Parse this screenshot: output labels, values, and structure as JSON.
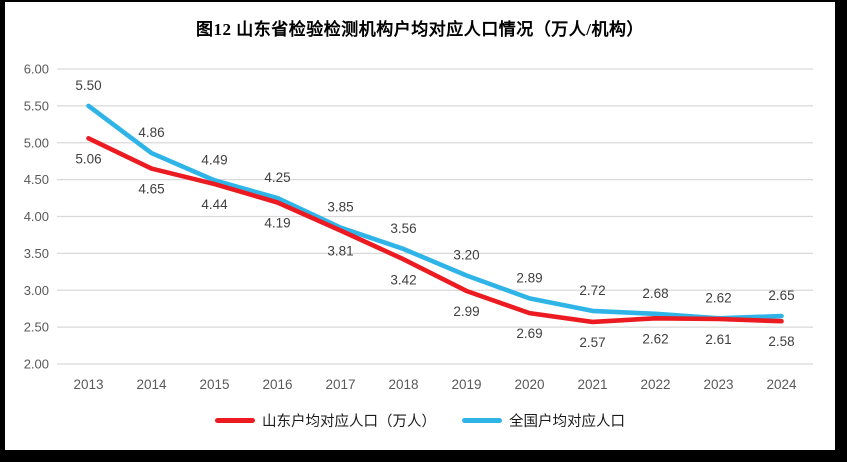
{
  "title": "图12 山东省检验检测机构户均对应人口情况（万人/机构）",
  "chart_data": {
    "type": "line",
    "title": "图12 山东省检验检测机构户均对应人口情况（万人/机构）",
    "categories": [
      "2013",
      "2014",
      "2015",
      "2016",
      "2017",
      "2018",
      "2019",
      "2020",
      "2021",
      "2022",
      "2023",
      "2024"
    ],
    "series": [
      {
        "name": "山东户均对应人口（万人）",
        "color": "#EC1B21",
        "values": [
          5.06,
          4.65,
          4.44,
          4.19,
          3.81,
          3.42,
          2.99,
          2.69,
          2.57,
          2.62,
          2.61,
          2.58
        ],
        "labels": [
          "5.06",
          "4.65",
          "4.44",
          "4.19",
          "3.81",
          "3.42",
          "2.99",
          "2.69",
          "2.57",
          "2.62",
          "2.61",
          "2.58"
        ],
        "label_position": "below"
      },
      {
        "name": "全国户均对应人口",
        "color": "#2FB4E8",
        "values": [
          5.5,
          4.86,
          4.49,
          4.25,
          3.85,
          3.56,
          3.2,
          2.89,
          2.72,
          2.68,
          2.62,
          2.65
        ],
        "labels": [
          "5.50",
          "4.86",
          "4.49",
          "4.25",
          "3.85",
          "3.56",
          "3.20",
          "2.89",
          "2.72",
          "2.68",
          "2.62",
          "2.65"
        ],
        "label_position": "above"
      }
    ],
    "ylim": [
      2.0,
      6.0
    ],
    "ytick_labels": [
      "2.00",
      "2.50",
      "3.00",
      "3.50",
      "4.00",
      "4.50",
      "5.00",
      "5.50",
      "6.00"
    ],
    "grid": true,
    "legend_position": "bottom",
    "gridline_color": "#D9D9D9",
    "axis_text_color": "#595959",
    "data_label_color": "#404040",
    "frame_color": "#000000",
    "plot_background": "#FFFFFF"
  }
}
